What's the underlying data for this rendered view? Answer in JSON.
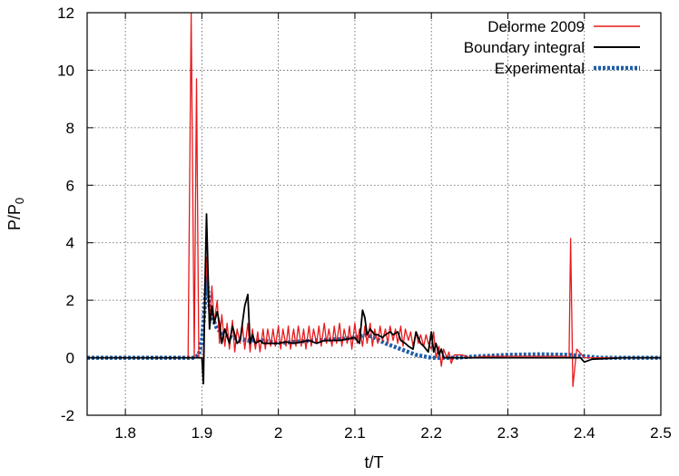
{
  "chart_data": {
    "type": "line",
    "xlabel": "t/T",
    "ylabel": {
      "main": "P/P",
      "sub": "0"
    },
    "xlim": [
      1.75,
      2.5
    ],
    "ylim": [
      -2,
      12
    ],
    "xticks": [
      "1.8",
      "1.9",
      "2",
      "2.1",
      "2.2",
      "2.3",
      "2.4",
      "2.5"
    ],
    "xtick_values": [
      1.8,
      1.9,
      2.0,
      2.1,
      2.2,
      2.3,
      2.4,
      2.5
    ],
    "yticks": [
      "-2",
      "0",
      "2",
      "4",
      "6",
      "8",
      "10",
      "12"
    ],
    "ytick_values": [
      -2,
      0,
      2,
      4,
      6,
      8,
      10,
      12
    ],
    "grid": true,
    "legend_position": "top-right",
    "series": [
      {
        "name": "Delorme 2009",
        "color": "#e8191c",
        "style": "solid",
        "x": [
          1.75,
          1.8,
          1.85,
          1.875,
          1.882,
          1.886,
          1.89,
          1.893,
          1.896,
          1.899,
          1.902,
          1.906,
          1.91,
          1.913,
          1.916,
          1.92,
          1.923,
          1.926,
          1.93,
          1.933,
          1.936,
          1.94,
          1.943,
          1.946,
          1.95,
          1.953,
          1.956,
          1.96,
          1.963,
          1.966,
          1.97,
          1.973,
          1.976,
          1.98,
          1.983,
          1.986,
          1.99,
          1.993,
          1.996,
          2.0,
          2.003,
          2.006,
          2.01,
          2.013,
          2.016,
          2.02,
          2.023,
          2.026,
          2.03,
          2.033,
          2.036,
          2.04,
          2.043,
          2.046,
          2.05,
          2.053,
          2.056,
          2.06,
          2.063,
          2.066,
          2.07,
          2.073,
          2.076,
          2.08,
          2.083,
          2.086,
          2.09,
          2.093,
          2.096,
          2.1,
          2.103,
          2.106,
          2.11,
          2.113,
          2.116,
          2.12,
          2.123,
          2.126,
          2.13,
          2.133,
          2.136,
          2.14,
          2.143,
          2.146,
          2.15,
          2.153,
          2.156,
          2.16,
          2.163,
          2.166,
          2.17,
          2.173,
          2.176,
          2.18,
          2.183,
          2.186,
          2.19,
          2.193,
          2.196,
          2.2,
          2.203,
          2.206,
          2.21,
          2.213,
          2.216,
          2.22,
          2.223,
          2.226,
          2.23,
          2.24,
          2.25,
          2.27,
          2.3,
          2.33,
          2.36,
          2.375,
          2.38,
          2.382,
          2.385,
          2.39,
          2.4,
          2.45,
          2.5
        ],
        "y": [
          0,
          0,
          0,
          0,
          0,
          12,
          0,
          9.7,
          0,
          0,
          0,
          3.5,
          1.0,
          2.5,
          1.2,
          2.0,
          0.5,
          1.5,
          0.4,
          1.2,
          0.3,
          1.3,
          0.2,
          1.0,
          0.5,
          1.1,
          0.3,
          1.2,
          0.2,
          1.0,
          0.3,
          0.9,
          0.2,
          1.0,
          0.3,
          1.0,
          0.4,
          1.0,
          0.4,
          1.1,
          0.3,
          1.0,
          0.4,
          1.1,
          0.3,
          1.0,
          0.4,
          1.1,
          0.4,
          1.0,
          0.3,
          1.1,
          0.4,
          1.0,
          0.5,
          1.1,
          0.4,
          1.2,
          0.5,
          1.0,
          0.4,
          1.1,
          0.5,
          1.2,
          0.4,
          1.0,
          0.5,
          1.1,
          0.3,
          1.2,
          0.5,
          1.0,
          0.4,
          1.1,
          0.5,
          1.2,
          0.4,
          1.0,
          0.5,
          1.1,
          0.6,
          1.0,
          0.5,
          1.1,
          0.6,
          1.0,
          0.5,
          1.1,
          0.4,
          1.0,
          0.6,
          0.9,
          0.4,
          0.9,
          0.5,
          0.8,
          0.4,
          0.8,
          0.5,
          0.3,
          0.9,
          0.0,
          0.4,
          -0.3,
          0.3,
          0.0,
          0.2,
          -0.2,
          0.1,
          0.1,
          0.0,
          0.05,
          0.05,
          0.05,
          0.05,
          0.05,
          0,
          4.15,
          -1.0,
          0.3,
          0,
          0,
          0
        ]
      },
      {
        "name": "Boundary integral",
        "color": "#000000",
        "style": "solid",
        "x": [
          1.75,
          1.85,
          1.89,
          1.9,
          1.902,
          1.904,
          1.906,
          1.91,
          1.913,
          1.916,
          1.92,
          1.923,
          1.926,
          1.93,
          1.936,
          1.94,
          1.946,
          1.95,
          1.956,
          1.96,
          1.963,
          1.966,
          1.97,
          1.976,
          1.98,
          1.99,
          2.0,
          2.01,
          2.02,
          2.03,
          2.04,
          2.05,
          2.06,
          2.07,
          2.08,
          2.09,
          2.1,
          2.106,
          2.11,
          2.113,
          2.116,
          2.12,
          2.126,
          2.13,
          2.136,
          2.14,
          2.146,
          2.15,
          2.156,
          2.16,
          2.166,
          2.17,
          2.176,
          2.18,
          2.186,
          2.19,
          2.196,
          2.2,
          2.203,
          2.206,
          2.21,
          2.213,
          2.216,
          2.22,
          2.24,
          2.26,
          2.3,
          2.34,
          2.38,
          2.395,
          2.4,
          2.41,
          2.45,
          2.5
        ],
        "y": [
          0,
          0,
          0,
          0,
          -0.9,
          2.5,
          5.0,
          1.0,
          1.8,
          1.2,
          1.6,
          1.2,
          0.5,
          1.0,
          0.5,
          1.1,
          0.5,
          0.6,
          1.8,
          2.2,
          0.5,
          0.8,
          0.5,
          0.6,
          0.5,
          0.5,
          0.5,
          0.55,
          0.5,
          0.55,
          0.6,
          0.5,
          0.6,
          0.6,
          0.6,
          0.65,
          0.7,
          0.5,
          1.65,
          1.4,
          0.8,
          1.0,
          0.8,
          0.8,
          0.7,
          0.8,
          0.9,
          0.8,
          0.9,
          0.6,
          0.5,
          0.4,
          0.3,
          0.9,
          0.5,
          0.4,
          0.2,
          0.9,
          0.2,
          0.5,
          0.1,
          0.3,
          0.0,
          0.0,
          0.0,
          0.0,
          0.0,
          0.0,
          0.0,
          0.0,
          -0.15,
          -0.05,
          0.0,
          0.0
        ]
      },
      {
        "name": "Experimental",
        "color": "#1f5fa8",
        "style": "dotted",
        "x": [
          1.75,
          1.85,
          1.89,
          1.896,
          1.9,
          1.903,
          1.906,
          1.91,
          1.915,
          1.92,
          1.93,
          1.94,
          1.96,
          1.98,
          2.0,
          2.02,
          2.05,
          2.08,
          2.1,
          2.115,
          2.125,
          2.14,
          2.16,
          2.18,
          2.2,
          2.215,
          2.23,
          2.26,
          2.3,
          2.34,
          2.38,
          2.4,
          2.42,
          2.45,
          2.5
        ],
        "y": [
          0,
          0,
          0,
          0.1,
          0.6,
          1.5,
          2.8,
          1.8,
          1.3,
          1.0,
          0.8,
          0.7,
          0.6,
          0.6,
          0.5,
          0.55,
          0.6,
          0.65,
          0.7,
          0.8,
          0.7,
          0.5,
          0.3,
          0.1,
          0.0,
          0.0,
          0.0,
          0.05,
          0.1,
          0.12,
          0.1,
          0.05,
          0.0,
          0.0,
          0.0
        ]
      }
    ]
  }
}
